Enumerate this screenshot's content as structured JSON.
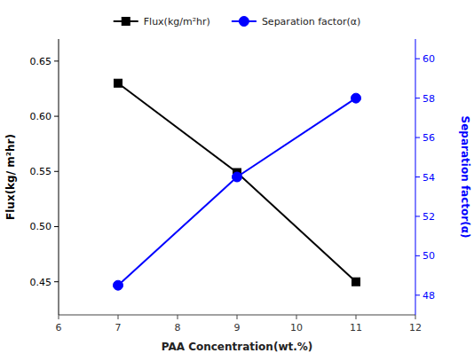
{
  "chart_data": {
    "type": "line",
    "x": [
      7,
      9,
      11
    ],
    "xlabel": "PAA Concentration(wt.%)",
    "ylabel": "Flux(kg/ m²hr)",
    "y2label": "Separation factor(α)",
    "xlim": [
      6,
      12
    ],
    "xticks": [
      6,
      7,
      8,
      9,
      10,
      11,
      12
    ],
    "ylim": [
      0.42,
      0.67
    ],
    "yticks": [
      0.45,
      {
        "value": 0.5,
        "label": "0.50"
      },
      0.55,
      {
        "value": 0.6,
        "label": "0.60"
      },
      0.65
    ],
    "y2lim": [
      47,
      61
    ],
    "y2ticks": [
      48,
      50,
      52,
      54,
      56,
      58,
      60
    ],
    "legend": "top",
    "series": [
      {
        "name": "Flux(kg/m²hr)",
        "color": "black",
        "marker": "square",
        "values": [
          0.63,
          0.549,
          0.45
        ]
      },
      {
        "name": "Separation factor(α)",
        "color": "blue",
        "marker": "circle",
        "values": [
          48.5,
          54.0,
          58.0
        ],
        "axis": "y2"
      }
    ]
  }
}
